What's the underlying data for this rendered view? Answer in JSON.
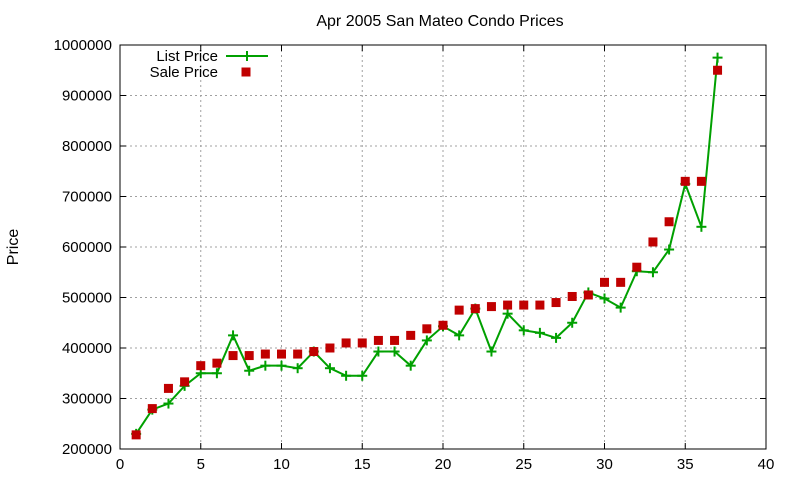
{
  "chart_data": {
    "type": "line",
    "title": "Apr 2005 San Mateo Condo Prices",
    "xlabel": "",
    "ylabel": "Price",
    "xlim": [
      0,
      40
    ],
    "ylim": [
      200000,
      1000000
    ],
    "xticks": [
      0,
      5,
      10,
      15,
      20,
      25,
      30,
      35,
      40
    ],
    "yticks": [
      200000,
      300000,
      400000,
      500000,
      600000,
      700000,
      800000,
      900000,
      1000000
    ],
    "grid": true,
    "legend_position": "top-left",
    "series": [
      {
        "name": "List Price",
        "style": "line-plus",
        "color": "#00a000",
        "x": [
          1,
          2,
          3,
          4,
          5,
          6,
          7,
          8,
          9,
          10,
          11,
          12,
          13,
          14,
          15,
          16,
          17,
          18,
          19,
          20,
          21,
          22,
          23,
          24,
          25,
          26,
          27,
          28,
          29,
          30,
          31,
          32,
          33,
          34,
          35,
          36,
          37
        ],
        "y": [
          230000,
          278000,
          290000,
          325000,
          350000,
          350000,
          425000,
          355000,
          365000,
          365000,
          360000,
          393000,
          360000,
          345000,
          345000,
          393000,
          393000,
          365000,
          415000,
          443000,
          425000,
          478000,
          393000,
          468000,
          435000,
          430000,
          420000,
          450000,
          510000,
          498000,
          480000,
          552000,
          550000,
          595000,
          725000,
          640000,
          975000
        ]
      },
      {
        "name": "Sale Price",
        "style": "square-markers",
        "color": "#c00000",
        "x": [
          1,
          2,
          3,
          4,
          5,
          6,
          7,
          8,
          9,
          10,
          11,
          12,
          13,
          14,
          15,
          16,
          17,
          18,
          19,
          20,
          21,
          22,
          23,
          24,
          25,
          26,
          27,
          28,
          29,
          30,
          31,
          32,
          33,
          34,
          35,
          36,
          37
        ],
        "y": [
          228000,
          280000,
          320000,
          333000,
          365000,
          370000,
          385000,
          385000,
          388000,
          388000,
          388000,
          393000,
          400000,
          410000,
          410000,
          415000,
          415000,
          425000,
          438000,
          445000,
          475000,
          478000,
          482000,
          485000,
          485000,
          485000,
          490000,
          502000,
          505000,
          530000,
          530000,
          560000,
          610000,
          650000,
          730000,
          730000,
          950000
        ]
      }
    ]
  }
}
